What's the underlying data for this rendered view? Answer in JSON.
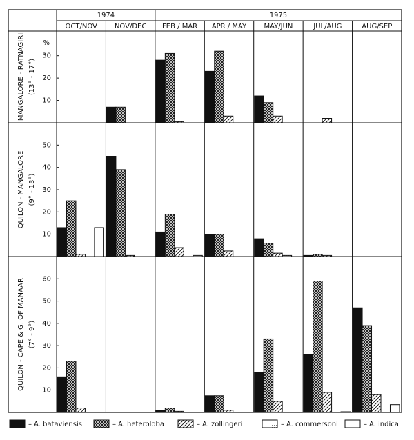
{
  "chart_data": {
    "type": "bar",
    "years": [
      "1974",
      "1975"
    ],
    "categories": [
      "OCT/NOV",
      "NOV/DEC",
      "FEB / MAR",
      "APR / MAY",
      "MAY/JUN",
      "JUL/AUG",
      "AUG/SEP"
    ],
    "unit": "%",
    "grid": false,
    "series": [
      {
        "name": "A. bataviensis",
        "color": "#111111",
        "pattern": "solid"
      },
      {
        "name": "A. heteroloba",
        "color": "#111111",
        "pattern": "crosshatch"
      },
      {
        "name": "A. zollingeri",
        "color": "#111111",
        "pattern": "diagonal"
      },
      {
        "name": "A. commersoni",
        "color": "#111111",
        "pattern": "dotted"
      },
      {
        "name": "A. indica",
        "color": "#111111",
        "pattern": "open"
      }
    ],
    "panels": [
      {
        "title": "MANGALORE - RATNAGIRI",
        "subtitle": "(13° - 17°)",
        "ylim": [
          0,
          41
        ],
        "yticks": [
          10,
          20,
          30
        ],
        "values": [
          [
            0,
            0,
            0,
            0,
            0
          ],
          [
            7,
            7,
            0,
            0,
            0
          ],
          [
            28,
            31,
            0.5,
            0,
            0
          ],
          [
            23,
            32,
            3,
            0,
            0
          ],
          [
            12,
            9,
            3,
            0,
            0
          ],
          [
            0,
            0,
            2,
            0,
            0
          ],
          [
            0,
            0,
            0,
            0,
            0
          ]
        ]
      },
      {
        "title": "QUILON - MANGALORE",
        "subtitle": "(9° - 13°)",
        "ylim": [
          0,
          60
        ],
        "yticks": [
          10,
          20,
          30,
          40,
          50
        ],
        "values": [
          [
            13,
            25,
            1,
            0,
            13
          ],
          [
            45,
            39,
            0.5,
            0,
            0
          ],
          [
            11,
            19,
            4,
            0,
            0.5
          ],
          [
            10,
            10,
            2.5,
            0,
            0
          ],
          [
            8,
            6,
            1.5,
            0.5,
            0
          ],
          [
            0.5,
            1,
            0.5,
            0,
            0
          ],
          [
            0,
            0,
            0,
            0,
            0
          ]
        ]
      },
      {
        "title": "QUILON - CAPE & G. OF MANAAR",
        "subtitle": "(7° - 9°)",
        "ylim": [
          0,
          70
        ],
        "yticks": [
          10,
          20,
          30,
          40,
          50,
          60
        ],
        "values": [
          [
            16,
            23,
            2,
            0,
            0
          ],
          [
            0,
            0,
            0,
            0,
            0
          ],
          [
            1,
            2,
            0.5,
            0,
            0
          ],
          [
            7.5,
            7.5,
            1,
            0,
            0
          ],
          [
            18,
            33,
            5,
            0,
            0
          ],
          [
            26,
            59,
            9,
            0,
            0.3
          ],
          [
            47,
            39,
            8,
            0,
            3.5
          ]
        ]
      }
    ]
  }
}
